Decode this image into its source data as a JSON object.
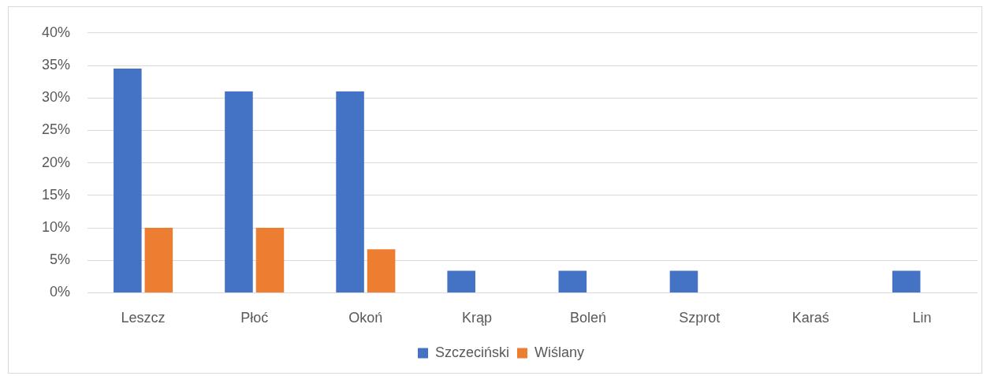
{
  "chart_data": {
    "type": "bar",
    "categories": [
      "Leszcz",
      "Płoć",
      "Okoń",
      "Krąp",
      "Boleń",
      "Szprot",
      "Karaś",
      "Lin"
    ],
    "series": [
      {
        "name": "Szczeciński",
        "color": "#4472c4",
        "values": [
          34.5,
          31.0,
          31.0,
          3.4,
          3.4,
          3.4,
          0,
          3.4
        ]
      },
      {
        "name": "Wiślany",
        "color": "#ed7d31",
        "values": [
          10.0,
          10.0,
          6.7,
          0,
          0,
          0,
          0,
          0
        ]
      }
    ],
    "ylim": [
      0,
      40
    ],
    "yticks": [
      {
        "value": 0,
        "label": "0%"
      },
      {
        "value": 5,
        "label": "5%"
      },
      {
        "value": 10,
        "label": "10%"
      },
      {
        "value": 15,
        "label": "15%"
      },
      {
        "value": 20,
        "label": "20%"
      },
      {
        "value": 25,
        "label": "25%"
      },
      {
        "value": 30,
        "label": "30%"
      },
      {
        "value": 35,
        "label": "35%"
      },
      {
        "value": 40,
        "label": "40%"
      }
    ],
    "grid": "y",
    "legend": "bottom"
  }
}
